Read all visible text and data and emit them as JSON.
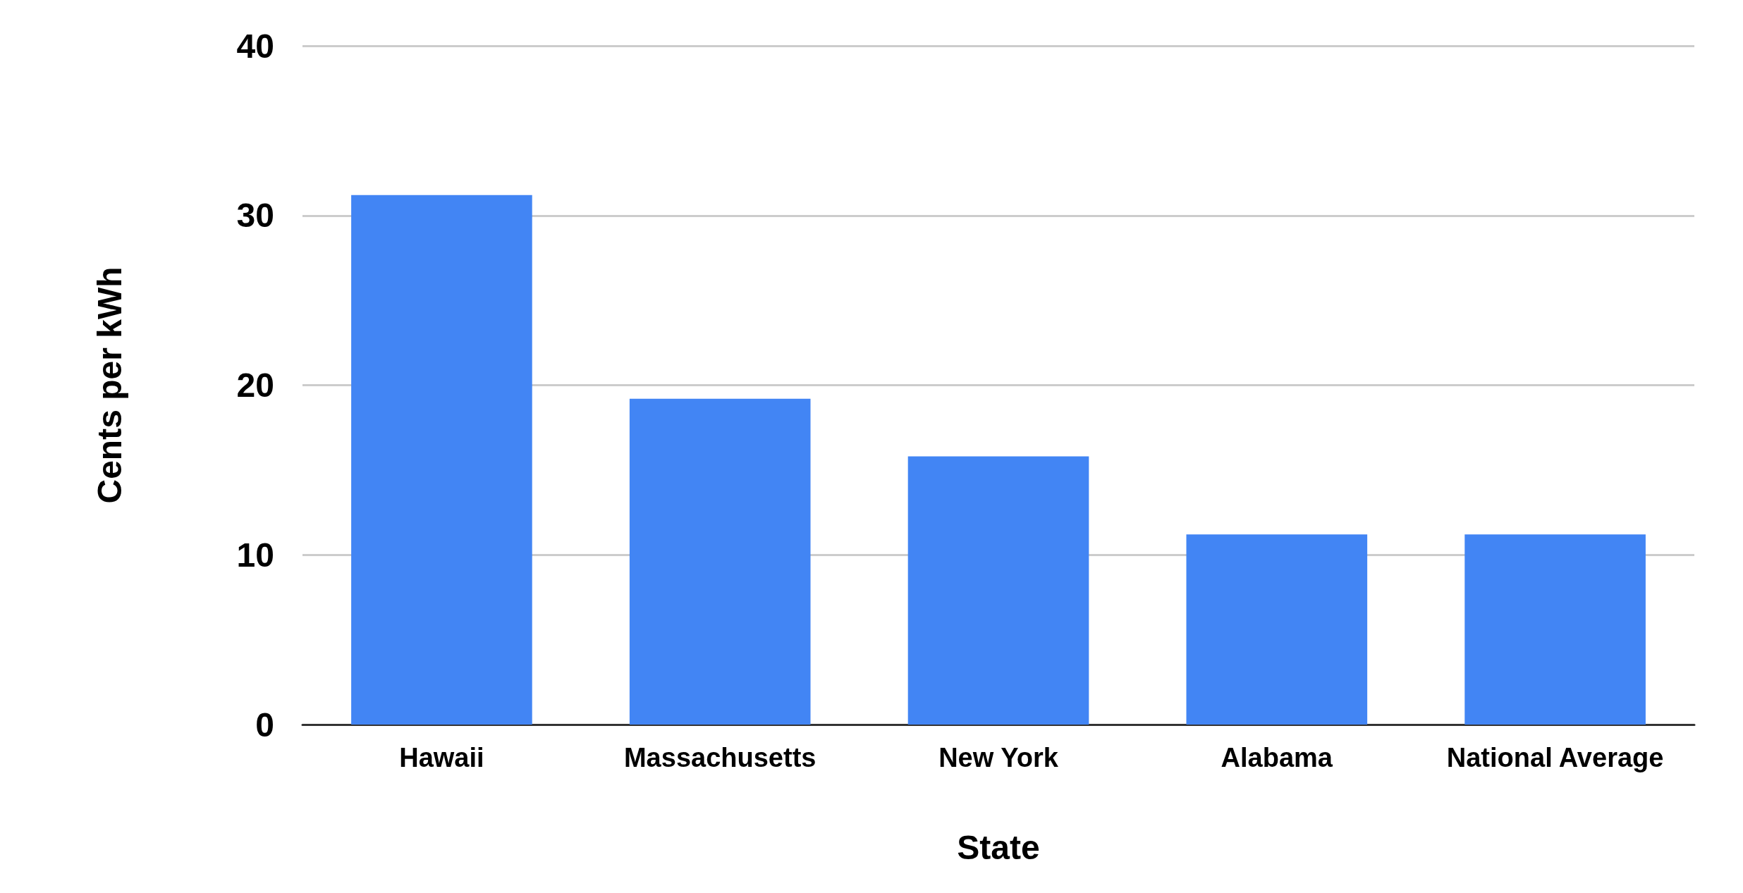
{
  "chart_data": {
    "type": "bar",
    "xlabel": "State",
    "ylabel": "Cents per kWh",
    "categories": [
      "Hawaii",
      "Massachusetts",
      "New York",
      "Alabama",
      "National Average"
    ],
    "values": [
      31.2,
      19.2,
      15.8,
      11.2,
      11.2
    ],
    "color": "#4285f4",
    "ylim": [
      0,
      40
    ],
    "yticks": [
      0,
      10,
      20,
      30,
      40
    ],
    "grid": "y"
  }
}
